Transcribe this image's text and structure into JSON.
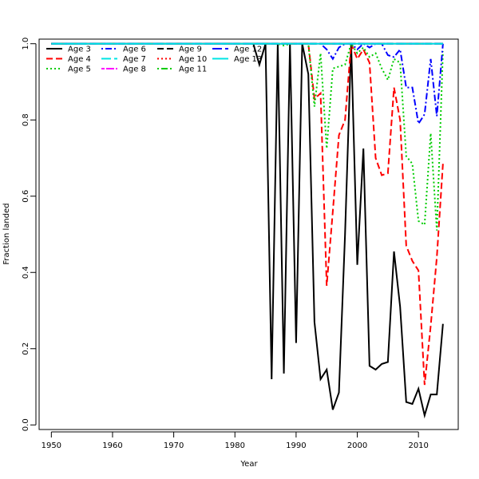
{
  "chart_data": {
    "type": "line",
    "title": "",
    "xlabel": "Year",
    "ylabel": "Fraction landed",
    "xlim": [
      1948,
      2016.5
    ],
    "ylim": [
      -0.012,
      1.012
    ],
    "xticks": [
      1950,
      1960,
      1970,
      1980,
      1990,
      2000,
      2010
    ],
    "yticks": [
      0.0,
      0.2,
      0.4,
      0.6,
      0.8,
      1.0
    ],
    "xtick_labels": [
      "1950",
      "1960",
      "1970",
      "1980",
      "1990",
      "2000",
      "2010"
    ],
    "ytick_labels": [
      "0.0",
      "0.2",
      "0.4",
      "0.6",
      "0.8",
      "1.0"
    ],
    "grid": false,
    "legend_position": "top-left",
    "x": [
      1950,
      1951,
      1952,
      1953,
      1954,
      1955,
      1956,
      1957,
      1958,
      1959,
      1960,
      1961,
      1962,
      1963,
      1964,
      1965,
      1966,
      1967,
      1968,
      1969,
      1970,
      1971,
      1972,
      1973,
      1974,
      1975,
      1976,
      1977,
      1978,
      1979,
      1980,
      1981,
      1982,
      1983,
      1984,
      1985,
      1986,
      1987,
      1988,
      1989,
      1990,
      1991,
      1992,
      1993,
      1994,
      1995,
      1996,
      1997,
      1998,
      1999,
      2000,
      2001,
      2002,
      2003,
      2004,
      2005,
      2006,
      2007,
      2008,
      2009,
      2010,
      2011,
      2012,
      2013,
      2014
    ],
    "series": [
      {
        "name": "Age 3",
        "color": "#000000",
        "dash": "solid",
        "values": [
          1,
          1,
          1,
          1,
          1,
          1,
          1,
          1,
          1,
          1,
          1,
          1,
          1,
          1,
          1,
          1,
          1,
          1,
          1,
          1,
          1,
          1,
          1,
          1,
          1,
          1,
          1,
          1,
          1,
          1,
          1,
          1,
          1,
          1,
          0.945,
          1,
          0.12,
          1,
          0.135,
          1,
          0.215,
          1,
          0.92,
          0.27,
          0.12,
          0.145,
          0.04,
          0.085,
          0.5,
          1,
          0.42,
          0.725,
          0.155,
          0.145,
          0.16,
          0.165,
          0.455,
          0.31,
          0.06,
          0.055,
          0.095,
          0.025,
          0.08,
          0.08,
          0.265
        ]
      },
      {
        "name": "Age 4",
        "color": "#ff0000",
        "dash": "dashed",
        "values": [
          1,
          1,
          1,
          1,
          1,
          1,
          1,
          1,
          1,
          1,
          1,
          1,
          1,
          1,
          1,
          1,
          1,
          1,
          1,
          1,
          1,
          1,
          1,
          1,
          1,
          1,
          1,
          1,
          1,
          1,
          1,
          1,
          1,
          1,
          1,
          1,
          1,
          1,
          1,
          1,
          1,
          1,
          1,
          0.855,
          0.87,
          0.365,
          0.56,
          0.76,
          0.8,
          1,
          0.96,
          0.985,
          0.95,
          0.7,
          0.655,
          0.66,
          0.885,
          0.8,
          0.47,
          0.43,
          0.405,
          0.105,
          0.26,
          0.44,
          0.685
        ]
      },
      {
        "name": "Age 5",
        "color": "#00cc00",
        "dash": "dotted",
        "values": [
          1,
          1,
          1,
          1,
          1,
          1,
          1,
          1,
          1,
          1,
          1,
          1,
          1,
          1,
          1,
          1,
          1,
          1,
          1,
          1,
          1,
          1,
          1,
          1,
          1,
          1,
          1,
          1,
          1,
          1,
          1,
          1,
          1,
          1,
          1,
          1,
          1,
          1,
          0.995,
          1,
          1,
          1,
          1,
          0.835,
          0.975,
          0.725,
          0.935,
          0.94,
          0.945,
          1,
          0.975,
          0.99,
          0.965,
          0.975,
          0.935,
          0.905,
          0.96,
          0.95,
          0.705,
          0.685,
          0.535,
          0.525,
          0.765,
          0.51,
          0.98
        ]
      },
      {
        "name": "Age 6",
        "color": "#0000ff",
        "dash": "dashdot",
        "values": [
          1,
          1,
          1,
          1,
          1,
          1,
          1,
          1,
          1,
          1,
          1,
          1,
          1,
          1,
          1,
          1,
          1,
          1,
          1,
          1,
          1,
          1,
          1,
          1,
          1,
          1,
          1,
          1,
          1,
          1,
          1,
          1,
          1,
          1,
          1,
          1,
          1,
          1,
          1,
          1,
          1,
          1,
          1,
          1,
          1,
          0.985,
          0.96,
          0.99,
          1,
          1,
          0.985,
          1,
          0.99,
          1,
          1,
          0.97,
          0.965,
          0.985,
          0.885,
          0.885,
          0.79,
          0.815,
          0.96,
          0.81,
          1
        ]
      },
      {
        "name": "Age 7",
        "color": "#00e5e5",
        "dash": "longdash",
        "values": [
          1,
          1,
          1,
          1,
          1,
          1,
          1,
          1,
          1,
          1,
          1,
          1,
          1,
          1,
          1,
          1,
          1,
          1,
          1,
          1,
          1,
          1,
          1,
          1,
          1,
          1,
          1,
          1,
          1,
          1,
          1,
          1,
          1,
          1,
          1,
          1,
          1,
          1,
          1,
          1,
          1,
          1,
          1,
          1,
          1,
          1,
          1,
          1,
          1,
          1,
          1,
          1,
          1,
          1,
          1,
          1,
          1,
          1,
          1,
          1,
          1,
          1,
          1,
          1,
          1
        ]
      },
      {
        "name": "Age 8",
        "color": "#ff00ff",
        "dash": "twodash",
        "values": [
          1,
          1,
          1,
          1,
          1,
          1,
          1,
          1,
          1,
          1,
          1,
          1,
          1,
          1,
          1,
          1,
          1,
          1,
          1,
          1,
          1,
          1,
          1,
          1,
          1,
          1,
          1,
          1,
          1,
          1,
          1,
          1,
          1,
          1,
          1,
          1,
          1,
          1,
          1,
          1,
          1,
          1,
          1,
          1,
          1,
          1,
          1,
          1,
          1,
          1,
          1,
          1,
          1,
          1,
          1,
          1,
          1,
          1,
          1,
          1,
          1,
          1,
          1,
          1,
          1
        ]
      },
      {
        "name": "Age 9",
        "color": "#000000",
        "dash": "dashed",
        "values": [
          1,
          1,
          1,
          1,
          1,
          1,
          1,
          1,
          1,
          1,
          1,
          1,
          1,
          1,
          1,
          1,
          1,
          1,
          1,
          1,
          1,
          1,
          1,
          1,
          1,
          1,
          1,
          1,
          1,
          1,
          1,
          1,
          1,
          1,
          1,
          1,
          1,
          1,
          1,
          1,
          1,
          1,
          1,
          1,
          1,
          1,
          1,
          1,
          1,
          1,
          1,
          1,
          1,
          1,
          1,
          1,
          1,
          1,
          1,
          1,
          1,
          1,
          1,
          1,
          1
        ]
      },
      {
        "name": "Age 10",
        "color": "#ff0000",
        "dash": "dotted",
        "values": [
          1,
          1,
          1,
          1,
          1,
          1,
          1,
          1,
          1,
          1,
          1,
          1,
          1,
          1,
          1,
          1,
          1,
          1,
          1,
          1,
          1,
          1,
          1,
          1,
          1,
          1,
          1,
          1,
          1,
          1,
          1,
          1,
          1,
          1,
          1,
          1,
          1,
          1,
          1,
          1,
          1,
          1,
          1,
          1,
          1,
          1,
          1,
          1,
          1,
          1,
          1,
          1,
          1,
          1,
          1,
          1,
          1,
          1,
          1,
          1,
          1,
          1,
          1,
          1,
          1
        ]
      },
      {
        "name": "Age 11",
        "color": "#00cc00",
        "dash": "dashdot",
        "values": [
          1,
          1,
          1,
          1,
          1,
          1,
          1,
          1,
          1,
          1,
          1,
          1,
          1,
          1,
          1,
          1,
          1,
          1,
          1,
          1,
          1,
          1,
          1,
          1,
          1,
          1,
          1,
          1,
          1,
          1,
          1,
          1,
          1,
          1,
          1,
          1,
          1,
          1,
          1,
          1,
          1,
          1,
          1,
          1,
          1,
          1,
          1,
          1,
          1,
          1,
          1,
          1,
          1,
          1,
          1,
          1,
          1,
          1,
          1,
          1,
          1,
          1,
          1,
          1,
          1
        ]
      },
      {
        "name": "Age 12",
        "color": "#0000ff",
        "dash": "longdash",
        "values": [
          1,
          1,
          1,
          1,
          1,
          1,
          1,
          1,
          1,
          1,
          1,
          1,
          1,
          1,
          1,
          1,
          1,
          1,
          1,
          1,
          1,
          1,
          1,
          1,
          1,
          1,
          1,
          1,
          1,
          1,
          1,
          1,
          1,
          1,
          1,
          1,
          1,
          1,
          1,
          1,
          1,
          1,
          1,
          1,
          1,
          1,
          1,
          1,
          1,
          1,
          1,
          1,
          1,
          1,
          1,
          1,
          1,
          1,
          1,
          1,
          1,
          1,
          1,
          1,
          1
        ]
      },
      {
        "name": "Age 13",
        "color": "#00e5e5",
        "dash": "solid",
        "values": [
          1,
          1,
          1,
          1,
          1,
          1,
          1,
          1,
          1,
          1,
          1,
          1,
          1,
          1,
          1,
          1,
          1,
          1,
          1,
          1,
          1,
          1,
          1,
          1,
          1,
          1,
          1,
          1,
          1,
          1,
          1,
          1,
          1,
          1,
          1,
          1,
          1,
          1,
          1,
          1,
          1,
          1,
          1,
          1,
          1,
          1,
          1,
          1,
          1,
          1,
          1,
          1,
          1,
          1,
          1,
          1,
          1,
          1,
          1,
          1,
          1,
          1,
          1,
          1,
          1
        ]
      }
    ]
  }
}
